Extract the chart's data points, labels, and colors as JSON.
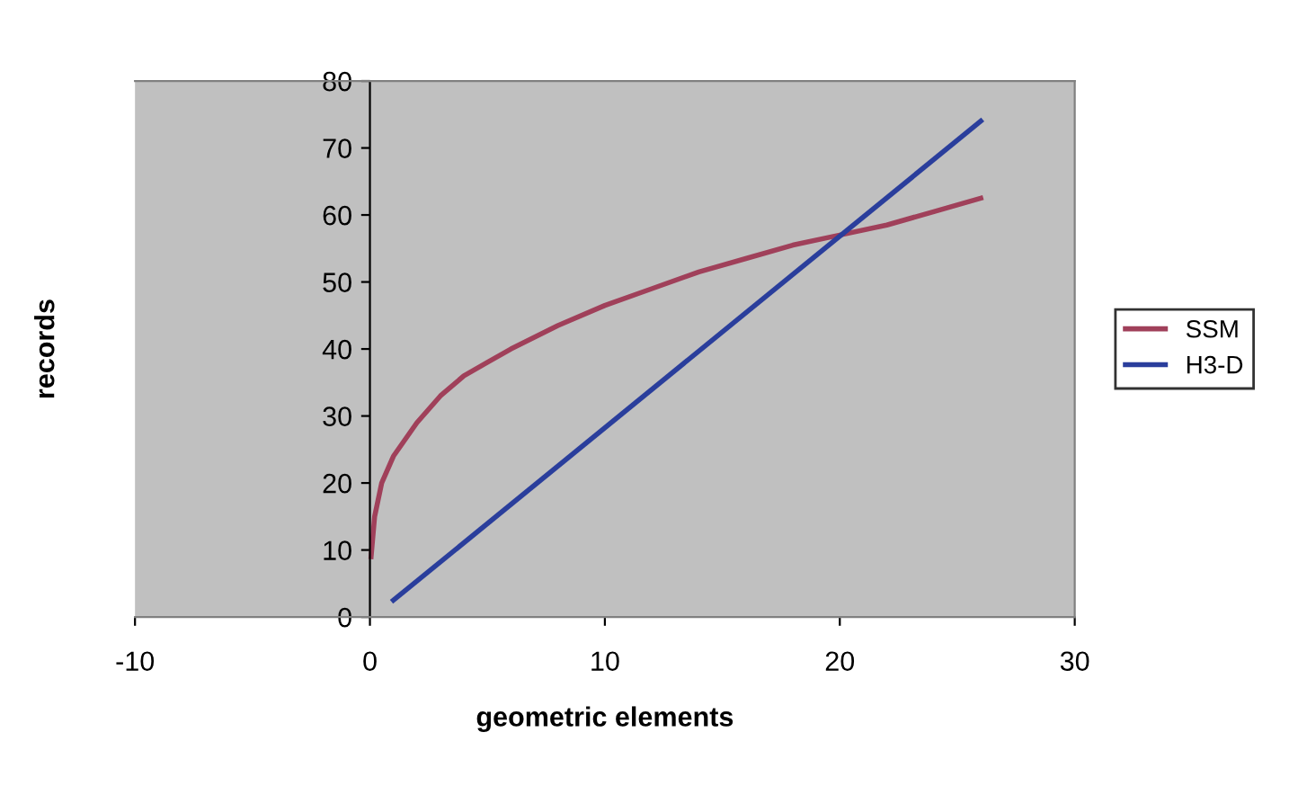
{
  "chart_data": {
    "type": "line",
    "xlabel": "geometric elements",
    "ylabel": "records",
    "xlim": [
      -10,
      30
    ],
    "xticks": [
      -10,
      0,
      10,
      20,
      30
    ],
    "ylim": [
      0,
      80
    ],
    "yticks": [
      0,
      10,
      20,
      30,
      40,
      50,
      60,
      70,
      80
    ],
    "grid": false,
    "legend": "right",
    "marker": "none",
    "line_style": "solid",
    "series": [
      {
        "name": "SSM",
        "color": "#a0405a",
        "x": [
          0.05,
          0.2,
          0.5,
          1,
          2,
          3,
          4,
          5,
          6,
          8,
          10,
          12,
          14,
          16,
          18,
          20,
          22,
          24,
          26
        ],
        "values": [
          9,
          15,
          20,
          24,
          29,
          33,
          36,
          38,
          40,
          43.5,
          46.5,
          49,
          51.5,
          53.5,
          55.5,
          57,
          58.5,
          60.5,
          62.5
        ]
      },
      {
        "name": "H3-D",
        "color": "#2a3e9c",
        "x": [
          1,
          26
        ],
        "values": [
          2.5,
          74
        ]
      }
    ]
  }
}
